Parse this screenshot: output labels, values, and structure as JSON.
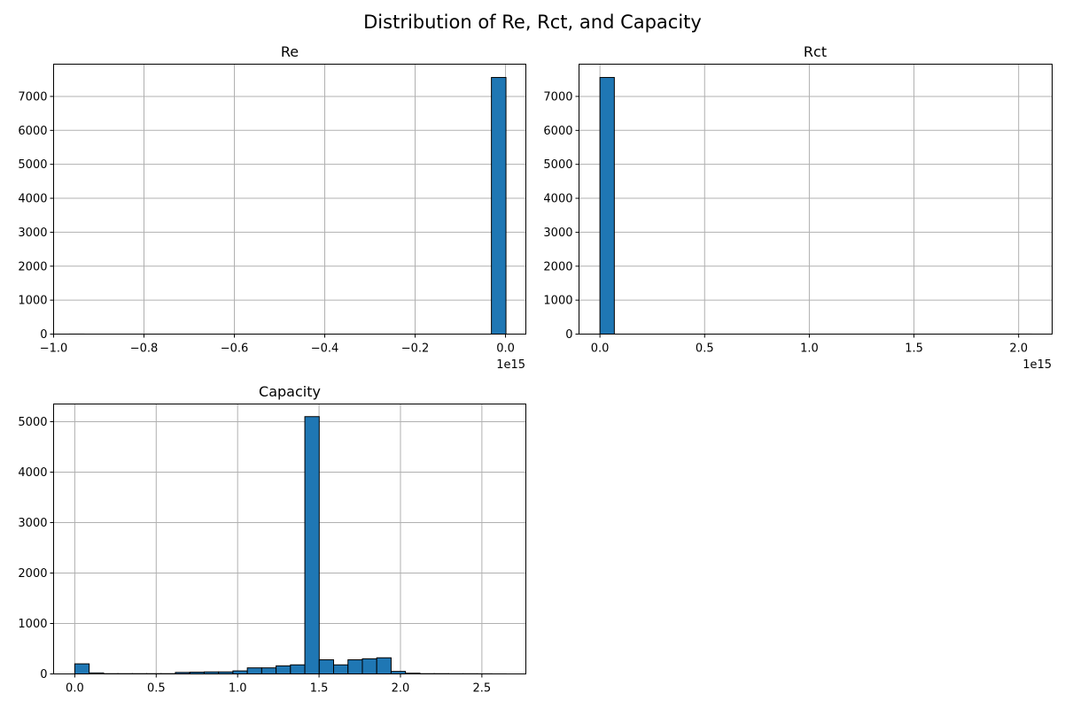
{
  "figure": {
    "title": "Distribution of Re, Rct, and Capacity"
  },
  "colors": {
    "bar_fill": "#1f77b4",
    "bar_edge": "#000000",
    "grid": "#b0b0b0"
  },
  "chart_data": [
    {
      "type": "histogram",
      "title": "Re",
      "xlim": [
        -1000000000000000.0,
        45000000000000.0
      ],
      "ylim": [
        0,
        7950
      ],
      "x_offset_label": "1e15",
      "x_ticks": [
        -1000000000000000.0,
        -800000000000000.0,
        -600000000000000.0,
        -400000000000000.0,
        -200000000000000.0,
        0.0
      ],
      "x_tick_labels": [
        "−1.0",
        "−0.8",
        "−0.6",
        "−0.4",
        "−0.2",
        "0.0"
      ],
      "y_ticks": [
        0,
        1000,
        2000,
        3000,
        4000,
        5000,
        6000,
        7000
      ],
      "y_tick_labels": [
        "0",
        "1000",
        "2000",
        "3000",
        "4000",
        "5000",
        "6000",
        "7000"
      ],
      "grid": true,
      "bin_start": -965000000000000.0,
      "bin_width": 32200000000000.0,
      "counts": [
        1,
        0,
        0,
        0,
        0,
        0,
        0,
        0,
        0,
        0,
        0,
        0,
        0,
        0,
        0,
        0,
        0,
        0,
        0,
        0,
        0,
        0,
        0,
        0,
        0,
        0,
        0,
        0,
        0,
        7558
      ]
    },
    {
      "type": "histogram",
      "title": "Rct",
      "xlim": [
        -100000000000000.0,
        2160000000000000.0
      ],
      "ylim": [
        0,
        7950
      ],
      "x_offset_label": "1e15",
      "x_ticks": [
        0.0,
        500000000000000.0,
        1000000000000000.0,
        1500000000000000.0,
        2000000000000000.0
      ],
      "x_tick_labels": [
        "0.0",
        "0.5",
        "1.0",
        "1.5",
        "2.0"
      ],
      "y_ticks": [
        0,
        1000,
        2000,
        3000,
        4000,
        5000,
        6000,
        7000
      ],
      "y_tick_labels": [
        "0",
        "1000",
        "2000",
        "3000",
        "4000",
        "5000",
        "6000",
        "7000"
      ],
      "grid": true,
      "bin_start": 0.0,
      "bin_width": 68700000000000.0,
      "counts": [
        7558,
        0,
        0,
        0,
        0,
        0,
        0,
        0,
        0,
        0,
        0,
        0,
        0,
        0,
        0,
        0,
        0,
        0,
        0,
        0,
        0,
        0,
        0,
        0,
        0,
        0,
        0,
        0,
        0,
        1
      ]
    },
    {
      "type": "histogram",
      "title": "Capacity",
      "xlim": [
        -0.13,
        2.77
      ],
      "ylim": [
        0,
        5350
      ],
      "x_ticks": [
        0.0,
        0.5,
        1.0,
        1.5,
        2.0,
        2.5
      ],
      "x_tick_labels": [
        "0.0",
        "0.5",
        "1.0",
        "1.5",
        "2.0",
        "2.5"
      ],
      "y_ticks": [
        0,
        1000,
        2000,
        3000,
        4000,
        5000
      ],
      "y_tick_labels": [
        "0",
        "1000",
        "2000",
        "3000",
        "4000",
        "5000"
      ],
      "grid": true,
      "bin_start": 0.0,
      "bin_width": 0.0883,
      "counts": [
        200,
        20,
        5,
        5,
        5,
        5,
        5,
        30,
        35,
        40,
        40,
        60,
        120,
        120,
        160,
        180,
        5100,
        280,
        180,
        280,
        300,
        320,
        50,
        15,
        5,
        5,
        3,
        3,
        2,
        1
      ]
    }
  ]
}
